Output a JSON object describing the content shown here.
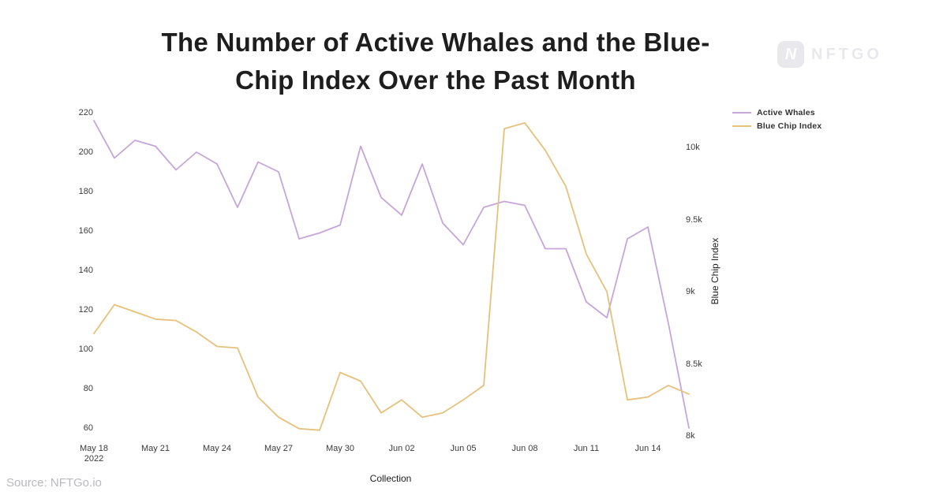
{
  "title": {
    "line1": "The Number of Active Whales and the Blue-",
    "line2": "Chip Index Over the Past Month"
  },
  "logo": {
    "icon_letter": "N",
    "wordmark": "NFTGO"
  },
  "legend": [
    {
      "label": "Active Whales",
      "color": "#c6a5da"
    },
    {
      "label": "Blue Chip Index",
      "color": "#e6c17c"
    }
  ],
  "source": "Source: NFTGo.io",
  "axes": {
    "left": {
      "ticks": [
        {
          "label": "220",
          "value": 220
        },
        {
          "label": "200",
          "value": 200
        },
        {
          "label": "180",
          "value": 180
        },
        {
          "label": "160",
          "value": 160
        },
        {
          "label": "140",
          "value": 140
        },
        {
          "label": "120",
          "value": 120
        },
        {
          "label": "100",
          "value": 100
        },
        {
          "label": "80",
          "value": 80
        },
        {
          "label": "60",
          "value": 60
        }
      ]
    },
    "right": {
      "title": "Blue Chip Index",
      "ticks": [
        {
          "label": "10k",
          "value": 10000
        },
        {
          "label": "9.5k",
          "value": 9500
        },
        {
          "label": "9k",
          "value": 9000
        },
        {
          "label": "8.5k",
          "value": 8500
        },
        {
          "label": "8k",
          "value": 8000
        }
      ]
    },
    "x": {
      "title": "Collection",
      "ticks": [
        {
          "label": "May 18",
          "sub": "2022",
          "day": 0
        },
        {
          "label": "May 21",
          "day": 3
        },
        {
          "label": "May 24",
          "day": 6
        },
        {
          "label": "May 27",
          "day": 9
        },
        {
          "label": "May 30",
          "day": 12
        },
        {
          "label": "Jun 02",
          "day": 15
        },
        {
          "label": "Jun 05",
          "day": 18
        },
        {
          "label": "Jun 08",
          "day": 21
        },
        {
          "label": "Jun 11",
          "day": 24
        },
        {
          "label": "Jun 14",
          "day": 27
        }
      ]
    }
  },
  "chart_data": {
    "type": "line",
    "x": [
      "May 18",
      "May 19",
      "May 20",
      "May 21",
      "May 22",
      "May 23",
      "May 24",
      "May 25",
      "May 26",
      "May 27",
      "May 28",
      "May 29",
      "May 30",
      "May 31",
      "Jun 01",
      "Jun 02",
      "Jun 03",
      "Jun 04",
      "Jun 05",
      "Jun 06",
      "Jun 07",
      "Jun 08",
      "Jun 09",
      "Jun 10",
      "Jun 11",
      "Jun 12",
      "Jun 13",
      "Jun 14",
      "Jun 15",
      "Jun 16"
    ],
    "series": [
      {
        "name": "Active Whales",
        "axis": "left",
        "color": "#c6a5da",
        "values": [
          216,
          197,
          206,
          203,
          191,
          200,
          194,
          172,
          195,
          190,
          156,
          159,
          163,
          203,
          177,
          168,
          194,
          164,
          153,
          172,
          175,
          173,
          151,
          151,
          124,
          116,
          156,
          162,
          113,
          60
        ]
      },
      {
        "name": "Blue Chip Index",
        "axis": "right",
        "color": "#e6c17c",
        "values": [
          8710,
          8910,
          8860,
          8810,
          8800,
          8720,
          8620,
          8610,
          8270,
          8130,
          8050,
          8040,
          8440,
          8380,
          8160,
          8250,
          8130,
          8160,
          8250,
          8350,
          10130,
          10170,
          9980,
          9730,
          9260,
          9000,
          8250,
          8270,
          8350,
          8290
        ]
      }
    ],
    "title": "The Number of Active Whales and the Blue-Chip Index Over the Past Month",
    "xlabel": "Collection",
    "ylabel_left": "",
    "ylabel_right": "Blue Chip Index",
    "left_ylim": [
      60,
      220
    ],
    "right_ylim": [
      8000,
      10000
    ],
    "grid": false,
    "legend_position": "top-right"
  }
}
